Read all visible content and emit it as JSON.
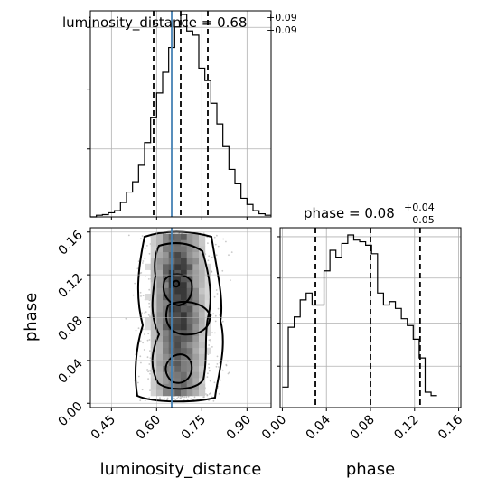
{
  "chart_data": {
    "type": "corner",
    "parameters": [
      "luminosity_distance",
      "phase"
    ],
    "panels": [
      {
        "name": "luminosity_distance-marginal",
        "type": "histogram",
        "title": {
          "param": "luminosity_distance",
          "median": "0.68",
          "plus": "+0.09",
          "minus": "−0.09"
        },
        "xlim": [
          0.38,
          0.98
        ],
        "bin_edges_start": 0.38,
        "bin_width": 0.02,
        "heights": [
          0,
          0.8,
          1.1,
          2,
          3,
          7,
          12,
          17,
          25,
          36,
          48,
          60,
          70,
          82,
          92,
          98,
          90,
          88,
          72,
          66,
          55,
          45,
          34,
          23,
          16,
          9,
          6,
          3,
          1.5,
          0.8
        ],
        "quantiles": [
          0.59,
          0.68,
          0.77
        ],
        "truth": 0.65,
        "xticks": [
          0.45,
          0.6,
          0.75,
          0.9
        ],
        "grid": true
      },
      {
        "name": "phase-marginal",
        "type": "histogram",
        "title": {
          "param": "phase",
          "median": "0.08",
          "plus": "+0.04",
          "minus": "−0.05"
        },
        "xlim": [
          -0.002,
          0.162
        ],
        "bin_edges_start": 0,
        "bin_width": 0.0054,
        "heights": [
          12,
          47,
          53,
          63,
          67,
          60,
          60,
          80,
          92,
          88,
          96,
          101,
          98,
          97,
          95,
          90,
          67,
          60,
          62,
          58,
          52,
          48,
          40,
          29,
          9,
          7
        ],
        "quantiles": [
          0.03,
          0.08,
          0.125
        ],
        "xticks": [
          0.0,
          0.04,
          0.08,
          0.12,
          0.16
        ],
        "xlabel": "phase",
        "grid": true
      },
      {
        "name": "joint-2d",
        "type": "2d-density",
        "xlim": [
          0.38,
          0.98
        ],
        "ylim": [
          -0.004,
          0.164
        ],
        "xticks": [
          0.45,
          0.6,
          0.75,
          0.9
        ],
        "yticks": [
          0.0,
          0.04,
          0.08,
          0.12,
          0.16
        ],
        "xlabel": "luminosity_distance",
        "ylabel": "phase",
        "truth_x": 0.65,
        "grid": true
      }
    ]
  },
  "colors": {
    "truth": "#4682b4",
    "line": "#000000",
    "grid": "#b0b0b0",
    "density": "#000000"
  }
}
